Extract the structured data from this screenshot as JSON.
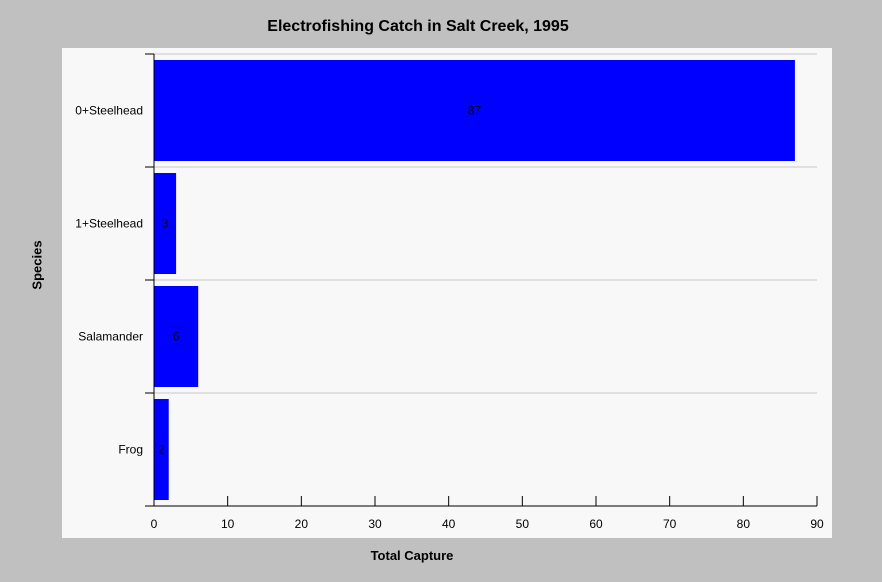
{
  "chart_data": {
    "type": "bar",
    "orientation": "horizontal",
    "title": "Electrofishing Catch in Salt Creek, 1995",
    "xlabel": "Total Capture",
    "ylabel": "Species",
    "categories": [
      "0+Steelhead",
      "1+Steelhead",
      "Salamander",
      "Frog"
    ],
    "values": [
      87,
      3,
      6,
      2
    ],
    "xlim": [
      0,
      90
    ],
    "xticks": [
      0,
      10,
      20,
      30,
      40,
      50,
      60,
      70,
      80,
      90
    ],
    "grid": true,
    "colors": {
      "bar": "#0000ff",
      "background": "#c0c0c0",
      "plot": "#f8f8f8",
      "grid": "#c8c8c8"
    }
  }
}
